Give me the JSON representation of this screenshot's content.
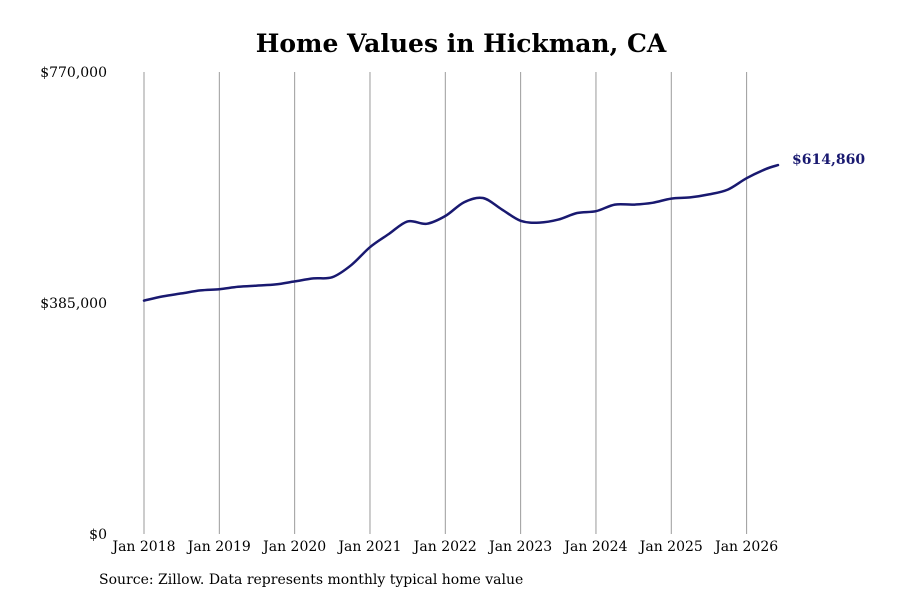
{
  "chart_data": {
    "type": "line",
    "title": "Home Values in Hickman, CA",
    "xlabel": "",
    "ylabel": "",
    "ylim": [
      0,
      770000
    ],
    "y_ticks": [
      {
        "value": 0,
        "label": "$0"
      },
      {
        "value": 385000,
        "label": "$385,000"
      },
      {
        "value": 770000,
        "label": "$770,000"
      }
    ],
    "x_ticks": [
      {
        "date": "2018-01",
        "label": "Jan 2018"
      },
      {
        "date": "2019-01",
        "label": "Jan 2019"
      },
      {
        "date": "2020-01",
        "label": "Jan 2020"
      },
      {
        "date": "2021-01",
        "label": "Jan 2021"
      },
      {
        "date": "2022-01",
        "label": "Jan 2022"
      },
      {
        "date": "2023-01",
        "label": "Jan 2023"
      },
      {
        "date": "2024-01",
        "label": "Jan 2024"
      },
      {
        "date": "2025-01",
        "label": "Jan 2025"
      },
      {
        "date": "2026-01",
        "label": "Jan 2026"
      }
    ],
    "xlim": [
      "2018-01",
      "2026-06"
    ],
    "vertical_grid": true,
    "horizontal_grid": false,
    "series": [
      {
        "color": "#191970",
        "end_label": "$614,860",
        "points": [
          {
            "x": "2018-01",
            "y": 389000
          },
          {
            "x": "2018-04",
            "y": 396000
          },
          {
            "x": "2018-07",
            "y": 401000
          },
          {
            "x": "2018-10",
            "y": 406000
          },
          {
            "x": "2019-01",
            "y": 408000
          },
          {
            "x": "2019-04",
            "y": 412000
          },
          {
            "x": "2019-07",
            "y": 414000
          },
          {
            "x": "2019-10",
            "y": 416000
          },
          {
            "x": "2020-01",
            "y": 421000
          },
          {
            "x": "2020-04",
            "y": 426000
          },
          {
            "x": "2020-07",
            "y": 428000
          },
          {
            "x": "2020-10",
            "y": 448000
          },
          {
            "x": "2021-01",
            "y": 478000
          },
          {
            "x": "2021-04",
            "y": 500000
          },
          {
            "x": "2021-07",
            "y": 521000
          },
          {
            "x": "2021-10",
            "y": 517000
          },
          {
            "x": "2022-01",
            "y": 530000
          },
          {
            "x": "2022-04",
            "y": 553000
          },
          {
            "x": "2022-07",
            "y": 560000
          },
          {
            "x": "2022-10",
            "y": 541000
          },
          {
            "x": "2023-01",
            "y": 522000
          },
          {
            "x": "2023-04",
            "y": 519000
          },
          {
            "x": "2023-07",
            "y": 524000
          },
          {
            "x": "2023-10",
            "y": 535000
          },
          {
            "x": "2024-01",
            "y": 538000
          },
          {
            "x": "2024-04",
            "y": 549000
          },
          {
            "x": "2024-07",
            "y": 549000
          },
          {
            "x": "2024-10",
            "y": 552000
          },
          {
            "x": "2025-01",
            "y": 559000
          },
          {
            "x": "2025-04",
            "y": 561000
          },
          {
            "x": "2025-07",
            "y": 566000
          },
          {
            "x": "2025-10",
            "y": 574000
          },
          {
            "x": "2026-01",
            "y": 593000
          },
          {
            "x": "2026-04",
            "y": 608000
          },
          {
            "x": "2026-06",
            "y": 614860
          }
        ]
      }
    ],
    "source_note": "Source: Zillow. Data represents monthly typical home value"
  }
}
